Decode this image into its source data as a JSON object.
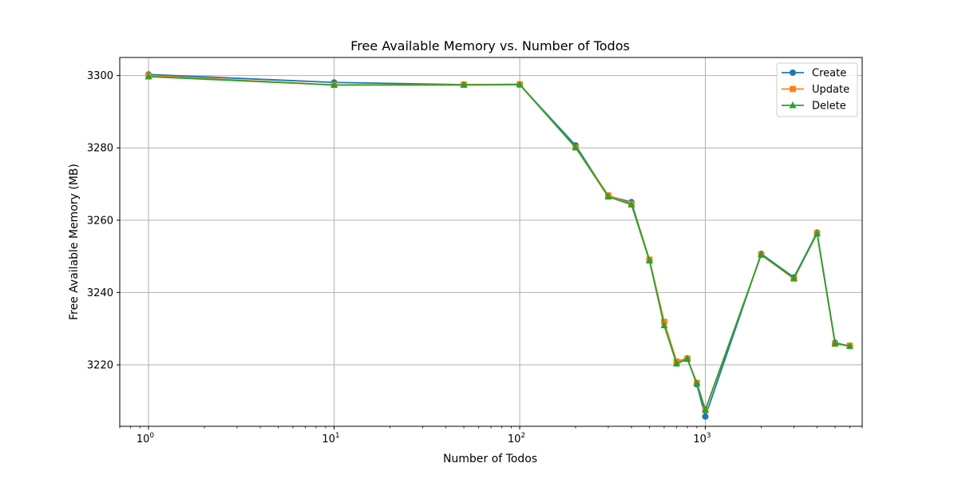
{
  "chart_data": {
    "type": "line",
    "title": "Free Available Memory vs. Number of Todos",
    "xlabel": "Number of Todos",
    "ylabel": "Free Available Memory (MB)",
    "xscale": "log",
    "xlim": [
      0.7,
      7000
    ],
    "ylim": [
      3203,
      3305
    ],
    "grid": true,
    "legend_position": "top-right",
    "x": [
      1,
      10,
      50,
      100,
      200,
      300,
      400,
      500,
      600,
      700,
      800,
      900,
      1000,
      2000,
      3000,
      4000,
      5000,
      6000
    ],
    "series": [
      {
        "name": "Create",
        "color": "#1f77b4",
        "marker": "circle",
        "values": [
          3300.3,
          3298.1,
          3297.5,
          3297.5,
          3280.7,
          3266.7,
          3265.0,
          3249.0,
          3231.8,
          3220.9,
          3221.8,
          3214.6,
          3205.7,
          3250.7,
          3244.2,
          3256.6,
          3226.1,
          3225.2
        ]
      },
      {
        "name": "Update",
        "color": "#ff7f0e",
        "marker": "square",
        "values": [
          3300.0,
          3297.4,
          3297.5,
          3297.6,
          3280.1,
          3266.9,
          3264.5,
          3249.1,
          3231.9,
          3220.9,
          3221.7,
          3215.0,
          3207.6,
          3250.4,
          3243.8,
          3256.4,
          3225.8,
          3225.3
        ]
      },
      {
        "name": "Delete",
        "color": "#2ca02c",
        "marker": "triangle",
        "values": [
          3299.7,
          3297.4,
          3297.4,
          3297.5,
          3280.1,
          3266.5,
          3264.3,
          3248.8,
          3230.9,
          3220.3,
          3221.6,
          3214.9,
          3207.5,
          3250.5,
          3244.0,
          3256.3,
          3225.9,
          3225.2
        ]
      }
    ],
    "y_ticks": [
      3220,
      3240,
      3260,
      3280,
      3300
    ],
    "x_ticks": [
      {
        "value": 1,
        "base": "10",
        "exp": "0"
      },
      {
        "value": 10,
        "base": "10",
        "exp": "1"
      },
      {
        "value": 100,
        "base": "10",
        "exp": "2"
      },
      {
        "value": 1000,
        "base": "10",
        "exp": "3"
      }
    ]
  }
}
